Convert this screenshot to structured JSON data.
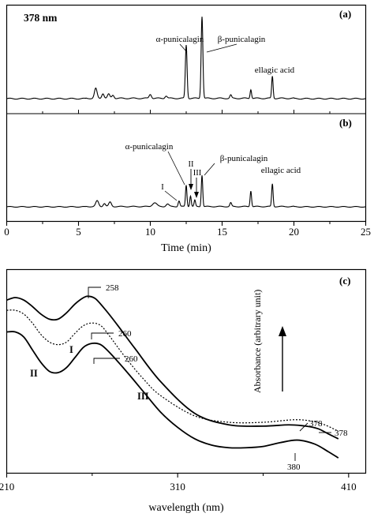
{
  "chart_data": [
    {
      "panel": "(a)",
      "type": "line",
      "annotation_top_left": "378 nm",
      "xlim": [
        0,
        25
      ],
      "x_ticks": [
        0,
        5,
        10,
        15,
        20,
        25
      ],
      "xlabel": "Time (min)",
      "peaks": [
        {
          "x": 6.2,
          "h": 0.12,
          "w": 0.09
        },
        {
          "x": 6.7,
          "h": 0.06,
          "w": 0.08
        },
        {
          "x": 7.1,
          "h": 0.05,
          "w": 0.08
        },
        {
          "x": 7.4,
          "h": 0.04,
          "w": 0.08
        },
        {
          "x": 10.0,
          "h": 0.05,
          "w": 0.08
        },
        {
          "x": 11.1,
          "h": 0.03,
          "w": 0.08
        },
        {
          "x": 12.5,
          "h": 0.65,
          "w": 0.06
        },
        {
          "x": 13.6,
          "h": 1.0,
          "w": 0.06
        },
        {
          "x": 15.6,
          "h": 0.04,
          "w": 0.06
        },
        {
          "x": 17.0,
          "h": 0.11,
          "w": 0.05
        },
        {
          "x": 18.5,
          "h": 0.27,
          "w": 0.05
        }
      ],
      "labels": [
        {
          "text": "α-punicalagin",
          "x": 12.5
        },
        {
          "text": "β-punicalagin",
          "x": 13.6
        },
        {
          "text": "ellagic acid",
          "x": 18.5
        }
      ]
    },
    {
      "panel": "(b)",
      "type": "line",
      "xlim": [
        0,
        25
      ],
      "x_ticks": [
        0,
        5,
        10,
        15,
        20,
        25
      ],
      "xlabel": "Time (min)",
      "peaks": [
        {
          "x": 6.3,
          "h": 0.09,
          "w": 0.1
        },
        {
          "x": 6.8,
          "h": 0.05,
          "w": 0.08
        },
        {
          "x": 7.2,
          "h": 0.07,
          "w": 0.09
        },
        {
          "x": 10.3,
          "h": 0.06,
          "w": 0.15
        },
        {
          "x": 11.2,
          "h": 0.04,
          "w": 0.1
        },
        {
          "x": 12.0,
          "h": 0.09,
          "w": 0.06
        },
        {
          "x": 12.5,
          "h": 0.34,
          "w": 0.05
        },
        {
          "x": 12.8,
          "h": 0.17,
          "w": 0.05
        },
        {
          "x": 13.1,
          "h": 0.1,
          "w": 0.05
        },
        {
          "x": 13.6,
          "h": 0.5,
          "w": 0.05
        },
        {
          "x": 15.6,
          "h": 0.06,
          "w": 0.06
        },
        {
          "x": 17.0,
          "h": 0.25,
          "w": 0.05
        },
        {
          "x": 18.5,
          "h": 0.36,
          "w": 0.05
        }
      ],
      "labels": [
        {
          "text": "α-punicalagin"
        },
        {
          "text": "β-punicalagin"
        },
        {
          "text": "ellagic acid"
        },
        {
          "text": "I"
        },
        {
          "text": "II"
        },
        {
          "text": "III"
        }
      ]
    },
    {
      "panel": "(c)",
      "type": "line",
      "xlabel": "wavelength (nm)",
      "ylabel": "Absorbance (arbitrary unit)",
      "xlim": [
        210,
        420
      ],
      "x_ticks": [
        210,
        310,
        410
      ],
      "ylim": [
        0,
        1.6
      ],
      "series": [
        {
          "style": "solid",
          "x": [
            210,
            215,
            220,
            225,
            230,
            235,
            240,
            245,
            250,
            255,
            258,
            262,
            268,
            275,
            285,
            300,
            320,
            340,
            360,
            375,
            385,
            392,
            398,
            404
          ],
          "y": [
            1.36,
            1.38,
            1.36,
            1.31,
            1.25,
            1.21,
            1.21,
            1.26,
            1.33,
            1.38,
            1.39,
            1.37,
            1.28,
            1.16,
            0.98,
            0.72,
            0.47,
            0.38,
            0.37,
            0.38,
            0.37,
            0.35,
            0.31,
            0.27
          ],
          "labels": [
            "258",
            "378"
          ]
        },
        {
          "style": "dotted",
          "name": "I",
          "x": [
            210,
            215,
            220,
            225,
            230,
            235,
            240,
            245,
            250,
            255,
            260,
            265,
            270,
            280,
            290,
            300,
            320,
            340,
            360,
            378,
            388,
            396,
            404
          ],
          "y": [
            1.28,
            1.28,
            1.25,
            1.18,
            1.09,
            1.03,
            1.01,
            1.03,
            1.1,
            1.16,
            1.18,
            1.16,
            1.08,
            0.9,
            0.74,
            0.61,
            0.45,
            0.4,
            0.4,
            0.42,
            0.41,
            0.38,
            0.33
          ],
          "labels": [
            "260",
            "378"
          ]
        },
        {
          "style": "solid",
          "name": "II",
          "x": [
            210,
            215,
            220,
            225,
            230,
            235,
            240,
            245,
            250,
            255,
            260,
            265,
            270,
            280,
            290,
            300,
            310,
            320,
            330,
            340,
            350,
            360,
            370,
            380,
            390,
            398,
            404
          ],
          "y": [
            1.11,
            1.11,
            1.07,
            0.97,
            0.87,
            0.8,
            0.79,
            0.83,
            0.91,
            0.99,
            1.02,
            1.01,
            0.95,
            0.8,
            0.64,
            0.48,
            0.36,
            0.27,
            0.22,
            0.2,
            0.2,
            0.21,
            0.24,
            0.26,
            0.23,
            0.17,
            0.12
          ],
          "labels": [
            "260",
            "380"
          ]
        }
      ],
      "curve_labels": [
        "I",
        "II",
        "III"
      ]
    }
  ],
  "colors": {
    "ink": "#000000",
    "background": "#ffffff"
  }
}
